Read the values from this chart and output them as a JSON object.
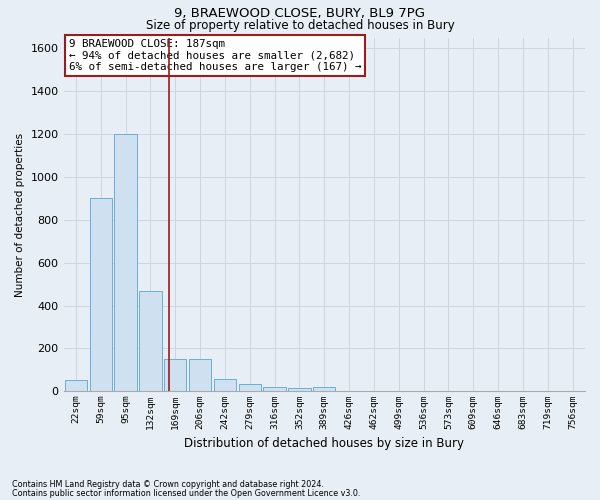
{
  "title1": "9, BRAEWOOD CLOSE, BURY, BL9 7PG",
  "title2": "Size of property relative to detached houses in Bury",
  "xlabel": "Distribution of detached houses by size in Bury",
  "ylabel": "Number of detached properties",
  "footnote1": "Contains HM Land Registry data © Crown copyright and database right 2024.",
  "footnote2": "Contains public sector information licensed under the Open Government Licence v3.0.",
  "bar_labels": [
    "22sqm",
    "59sqm",
    "95sqm",
    "132sqm",
    "169sqm",
    "206sqm",
    "242sqm",
    "279sqm",
    "316sqm",
    "352sqm",
    "389sqm",
    "426sqm",
    "462sqm",
    "499sqm",
    "536sqm",
    "573sqm",
    "609sqm",
    "646sqm",
    "683sqm",
    "719sqm",
    "756sqm"
  ],
  "bar_values": [
    55,
    900,
    1200,
    470,
    150,
    150,
    60,
    35,
    20,
    15,
    20,
    0,
    0,
    0,
    0,
    0,
    0,
    0,
    0,
    0,
    0
  ],
  "bar_color": "#cfe0f0",
  "bar_edge_color": "#6aaed6",
  "grid_color": "#cdd5e0",
  "vline_x": 3.75,
  "vline_color": "#9b1c1c",
  "annotation_text": "9 BRAEWOOD CLOSE: 187sqm\n← 94% of detached houses are smaller (2,682)\n6% of semi-detached houses are larger (167) →",
  "annotation_box_color": "#ffffff",
  "annotation_box_edgecolor": "#9b1c1c",
  "ylim": [
    0,
    1650
  ],
  "yticks": [
    0,
    200,
    400,
    600,
    800,
    1000,
    1200,
    1400,
    1600
  ],
  "background_color": "#e8eef6",
  "title_fontsize": 9.5,
  "subtitle_fontsize": 8.5
}
